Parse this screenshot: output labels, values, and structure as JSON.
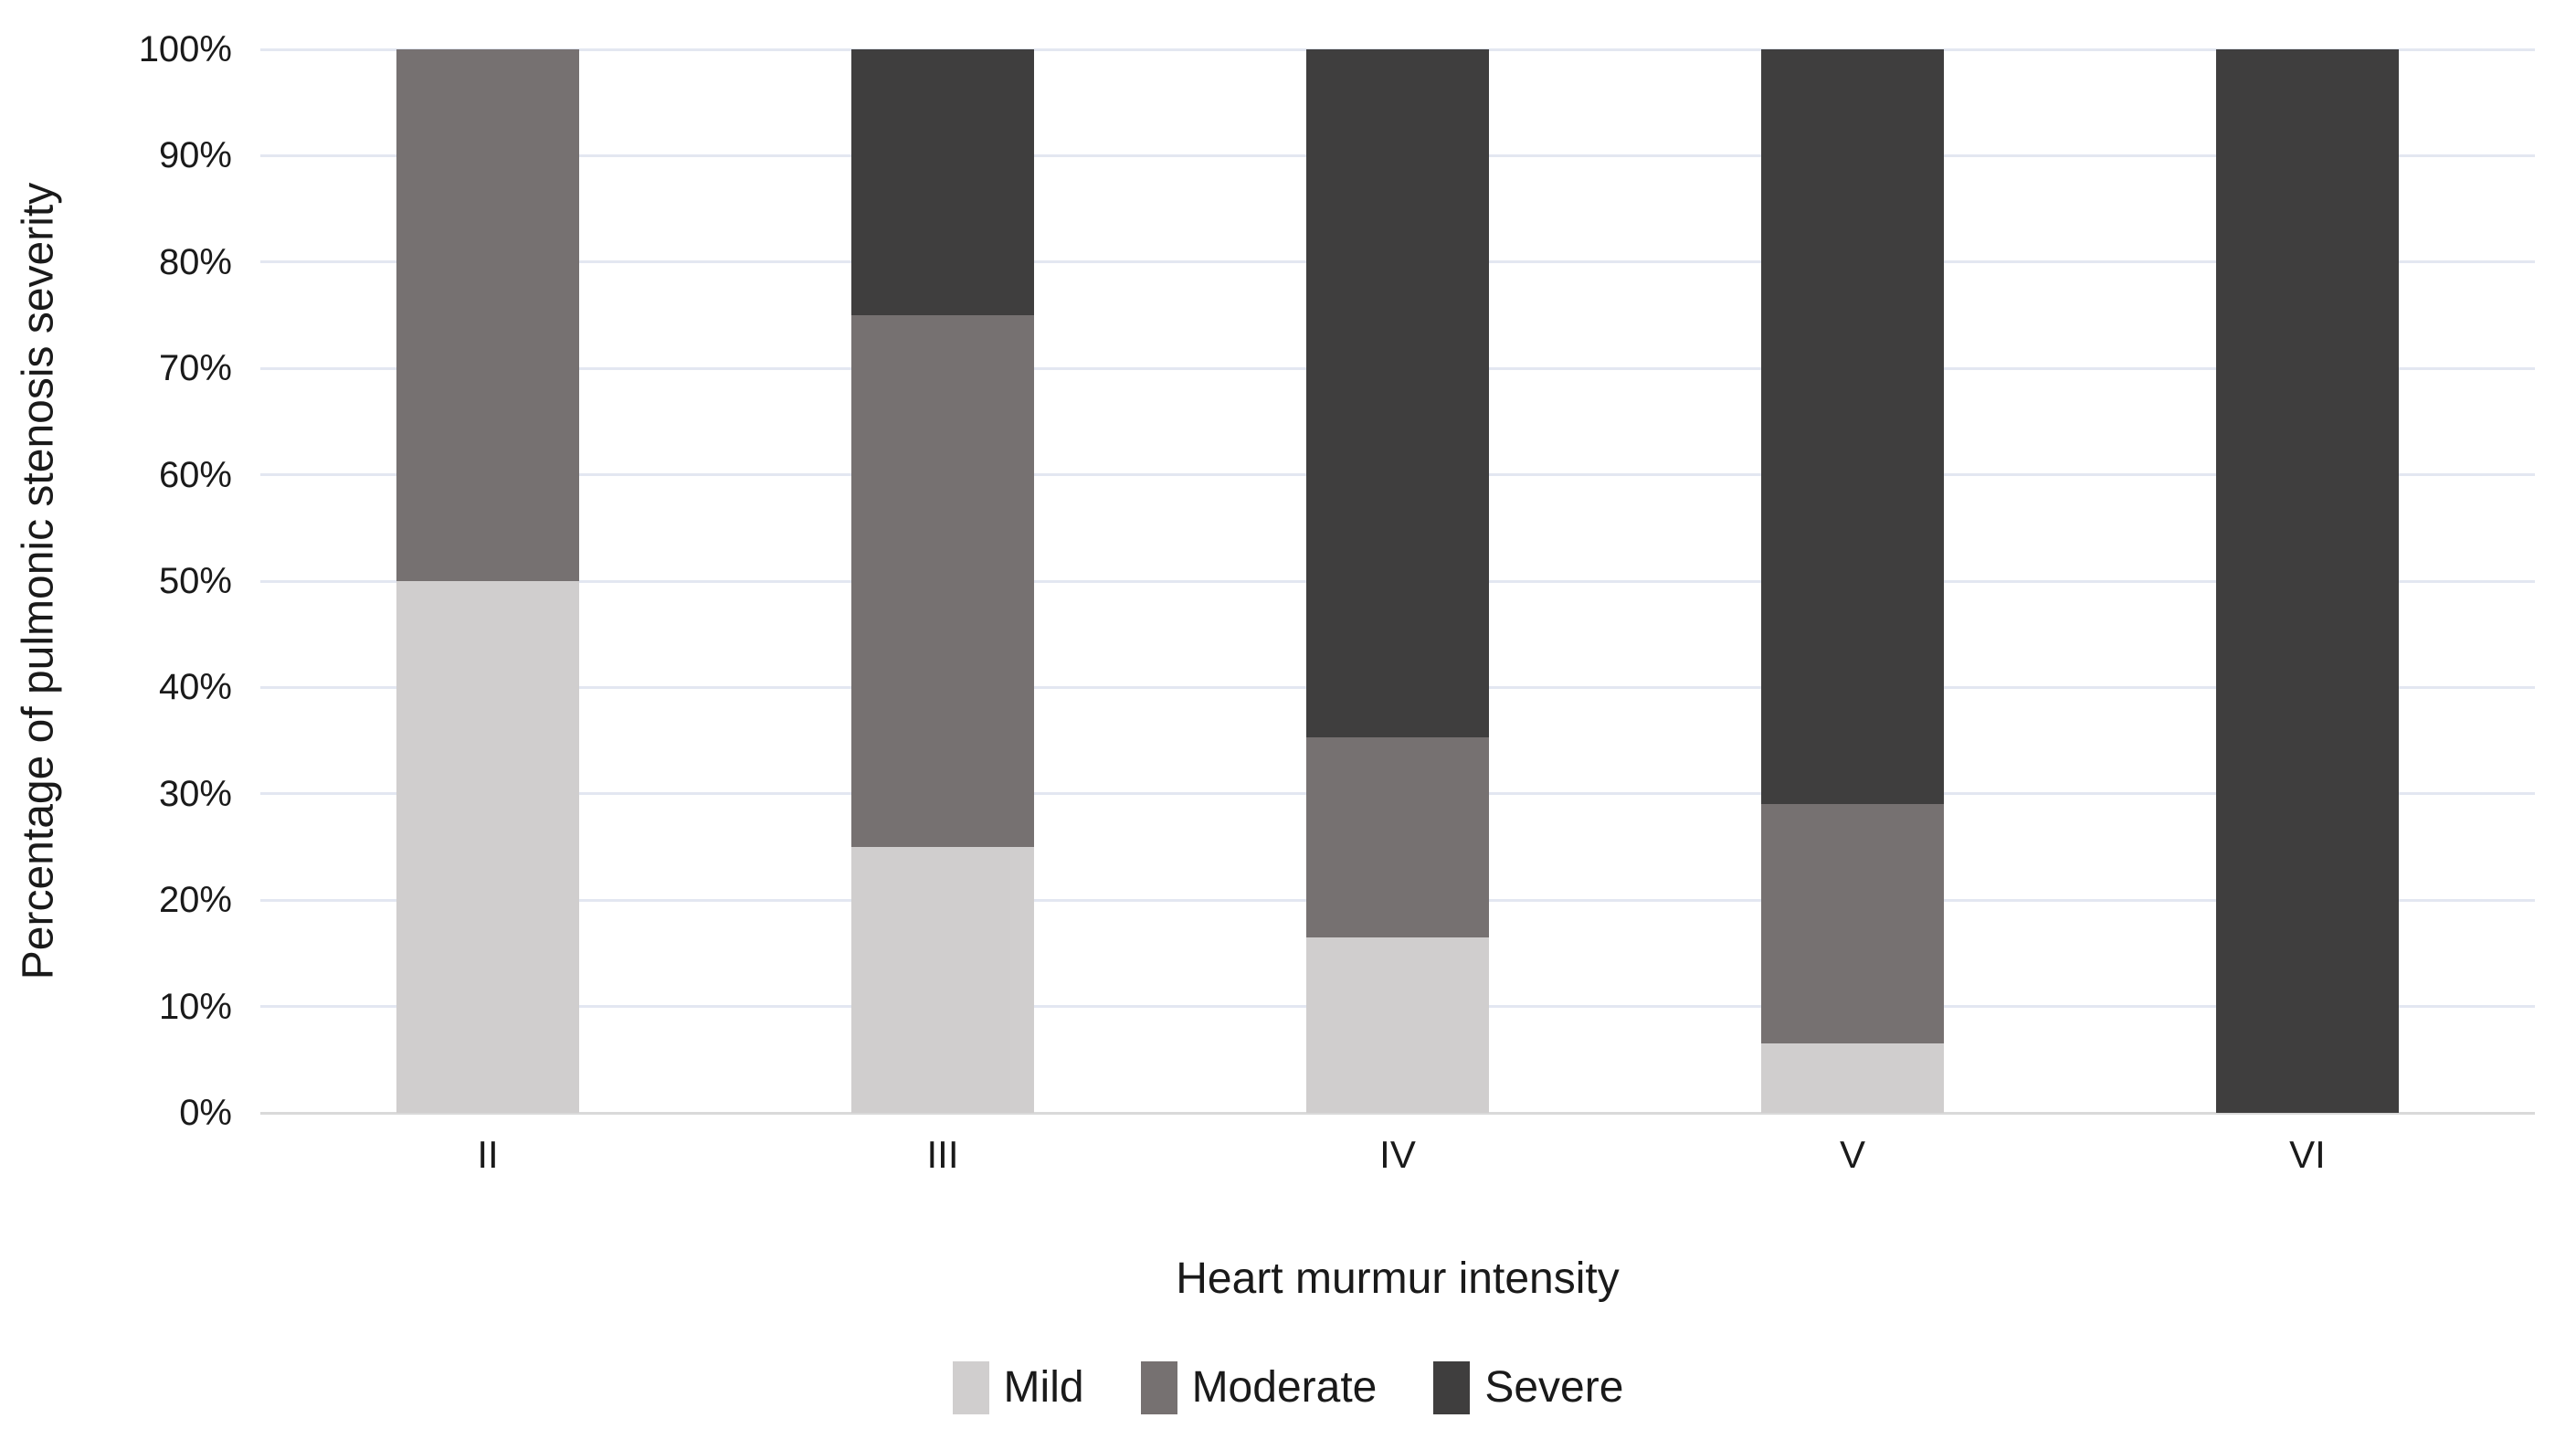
{
  "chart_data": {
    "type": "bar",
    "variant": "100-percent-stacked-column",
    "title": "",
    "xlabel": "Heart murmur intensity",
    "ylabel": "Percentage of pulmonic stenosis severity",
    "categories": [
      "II",
      "III",
      "IV",
      "V",
      "VI"
    ],
    "series": [
      {
        "name": "Mild",
        "color": "#d0cece",
        "values": [
          50,
          25,
          16.5,
          6.5,
          0
        ]
      },
      {
        "name": "Moderate",
        "color": "#767171",
        "values": [
          50,
          50,
          18.8,
          22.5,
          0
        ]
      },
      {
        "name": "Severe",
        "color": "#3f3e3e",
        "values": [
          0,
          25,
          64.7,
          71.0,
          100
        ]
      }
    ],
    "ylim": [
      0,
      100
    ],
    "ytick_step": 10,
    "ytick_labels": [
      "0%",
      "10%",
      "20%",
      "30%",
      "40%",
      "50%",
      "60%",
      "70%",
      "80%",
      "90%",
      "100%"
    ],
    "grid": true,
    "gridline_color": "#e3e7f1",
    "baseline_color": "#d9d9d9",
    "text_color": "#1a1a1a",
    "background_color": "#ffffff",
    "legend_position": "bottom",
    "bar_gap_ratio": 0.6
  }
}
